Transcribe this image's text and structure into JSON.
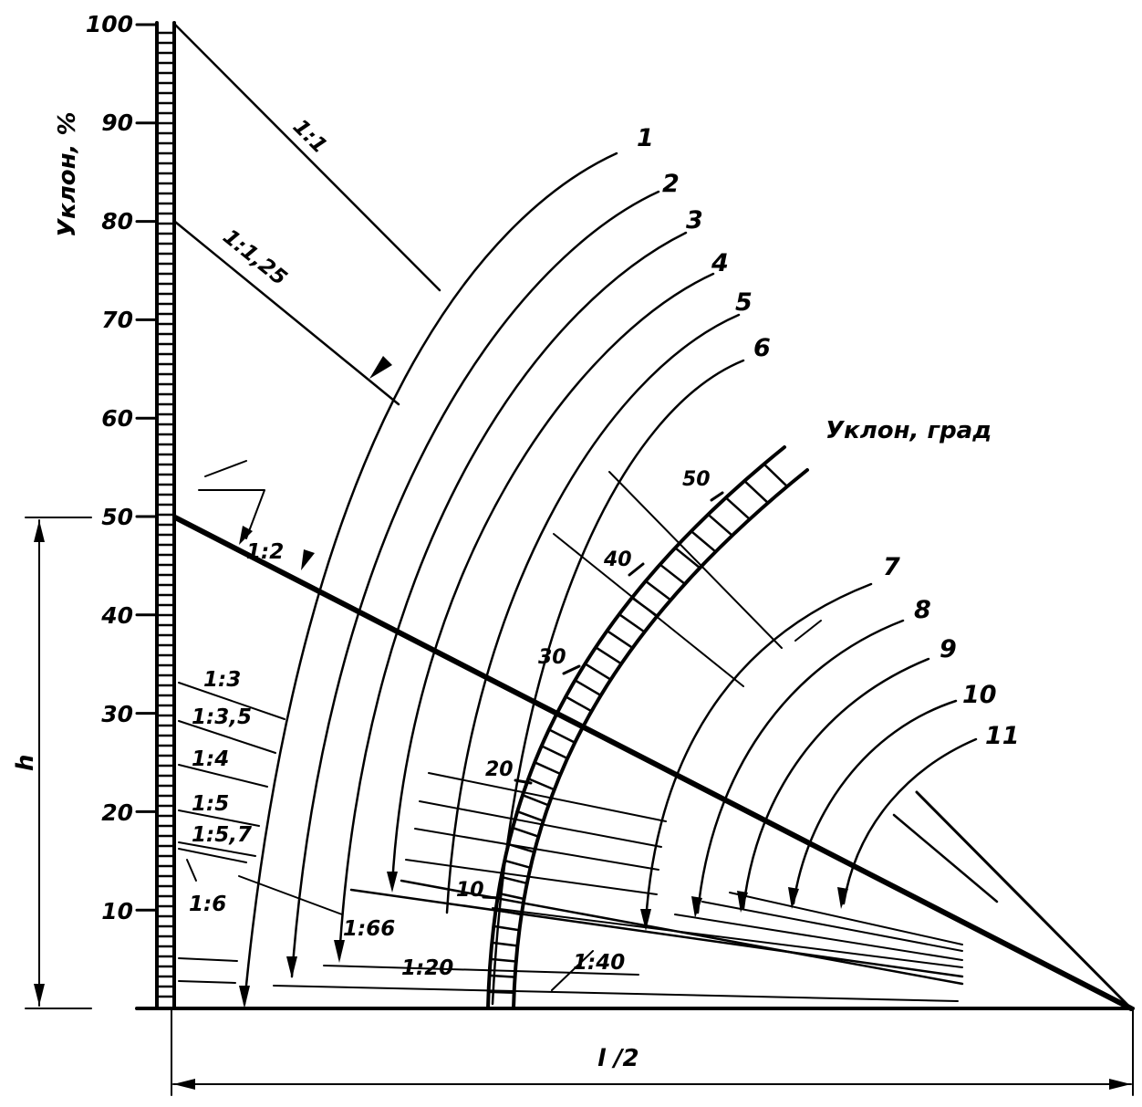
{
  "left_axis": {
    "title": "Уклон, %",
    "ticks": [
      "100",
      "90",
      "80",
      "70",
      "60",
      "50",
      "40",
      "30",
      "20",
      "10"
    ]
  },
  "degree_scale": {
    "title": "Уклон, град",
    "ticks": [
      "50",
      "40",
      "30",
      "20",
      "10"
    ]
  },
  "slope_labels": {
    "s1_1": "1:1",
    "s1_125": "1:1,25",
    "s1_2": "1:2",
    "s1_3": "1:3",
    "s1_35": "1:3,5",
    "s1_4": "1:4",
    "s1_5": "1:5",
    "s1_57": "1:5,7",
    "s1_6": "1:6",
    "s1_66": "1:66",
    "s1_20": "1:20",
    "s1_40": "1:40"
  },
  "curve_numbers": [
    "1",
    "2",
    "3",
    "4",
    "5",
    "6",
    "7",
    "8",
    "9",
    "10",
    "11"
  ],
  "dimensions": {
    "height": "h",
    "half_span": "l /2"
  },
  "colors": {
    "ink": "#000000",
    "paper": "#ffffff"
  }
}
